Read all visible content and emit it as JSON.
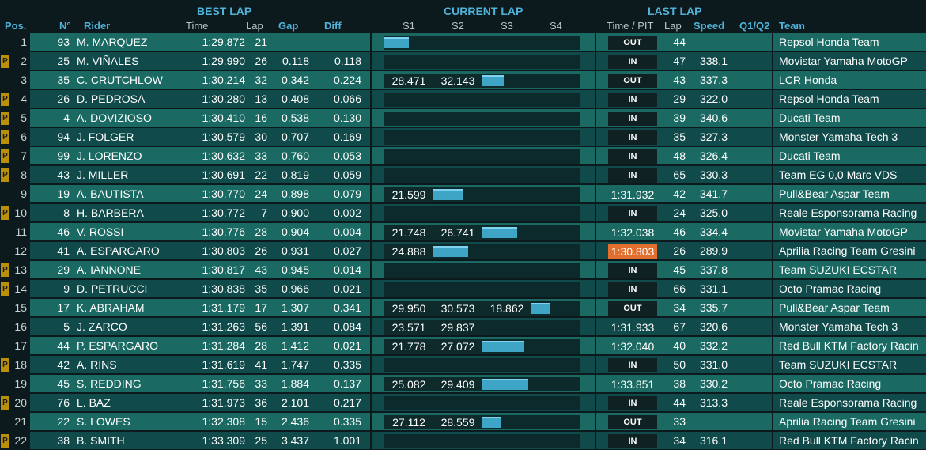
{
  "headers": {
    "best_lap": "BEST LAP",
    "current_lap": "CURRENT LAP",
    "last_lap": "LAST LAP",
    "pos": "Pos.",
    "num": "N°",
    "rider": "Rider",
    "time": "Time",
    "lap": "Lap",
    "gap": "Gap",
    "diff": "Diff",
    "s1": "S1",
    "s2": "S2",
    "s3": "S3",
    "s4": "S4",
    "time_pit": "Time / PIT",
    "last_lap_col": "Lap",
    "speed": "Speed",
    "q1q2": "Q1/Q2",
    "team": "Team"
  },
  "pit_flag": "P",
  "colors": {
    "sector_bar": "#3fa5c7",
    "fastest_lap": "#e36f2e",
    "pit_flag": "#b8900a",
    "group_header": "#4fb3d9"
  },
  "rows": [
    {
      "pos": "1",
      "pflag": false,
      "num": "93",
      "rider": "M. MARQUEZ",
      "best_time": "1:29.872",
      "best_lap": "21",
      "gap": "",
      "diff": "",
      "sectors": [
        "",
        "",
        "",
        ""
      ],
      "current_sector": 0,
      "sector_progress": 0.5,
      "last": "OUT",
      "last_type": "pit",
      "last_lap": "44",
      "speed": "",
      "team": "Repsol Honda Team"
    },
    {
      "pos": "2",
      "pflag": true,
      "num": "25",
      "rider": "M. VIÑALES",
      "best_time": "1:29.990",
      "best_lap": "26",
      "gap": "0.118",
      "diff": "0.118",
      "sectors": [
        "",
        "",
        "",
        ""
      ],
      "current_sector": -1,
      "sector_progress": 0,
      "last": "IN",
      "last_type": "pit",
      "last_lap": "47",
      "speed": "338.1",
      "team": "Movistar Yamaha MotoGP"
    },
    {
      "pos": "3",
      "pflag": false,
      "num": "35",
      "rider": "C. CRUTCHLOW",
      "best_time": "1:30.214",
      "best_lap": "32",
      "gap": "0.342",
      "diff": "0.224",
      "sectors": [
        "28.471",
        "32.143",
        "",
        ""
      ],
      "current_sector": 2,
      "sector_progress": 0.43,
      "last": "OUT",
      "last_type": "pit",
      "last_lap": "43",
      "speed": "337.3",
      "team": "LCR Honda"
    },
    {
      "pos": "4",
      "pflag": true,
      "num": "26",
      "rider": "D. PEDROSA",
      "best_time": "1:30.280",
      "best_lap": "13",
      "gap": "0.408",
      "diff": "0.066",
      "sectors": [
        "",
        "",
        "",
        ""
      ],
      "current_sector": -1,
      "sector_progress": 0,
      "last": "IN",
      "last_type": "pit",
      "last_lap": "29",
      "speed": "322.0",
      "team": "Repsol Honda Team"
    },
    {
      "pos": "5",
      "pflag": true,
      "num": "4",
      "rider": "A. DOVIZIOSO",
      "best_time": "1:30.410",
      "best_lap": "16",
      "gap": "0.538",
      "diff": "0.130",
      "sectors": [
        "",
        "",
        "",
        ""
      ],
      "current_sector": -1,
      "sector_progress": 0,
      "last": "IN",
      "last_type": "pit",
      "last_lap": "39",
      "speed": "340.6",
      "team": "Ducati Team"
    },
    {
      "pos": "6",
      "pflag": true,
      "num": "94",
      "rider": "J. FOLGER",
      "best_time": "1:30.579",
      "best_lap": "30",
      "gap": "0.707",
      "diff": "0.169",
      "sectors": [
        "",
        "",
        "",
        ""
      ],
      "current_sector": -1,
      "sector_progress": 0,
      "last": "IN",
      "last_type": "pit",
      "last_lap": "35",
      "speed": "327.3",
      "team": "Monster Yamaha Tech 3"
    },
    {
      "pos": "7",
      "pflag": true,
      "num": "99",
      "rider": "J. LORENZO",
      "best_time": "1:30.632",
      "best_lap": "33",
      "gap": "0.760",
      "diff": "0.053",
      "sectors": [
        "",
        "",
        "",
        ""
      ],
      "current_sector": -1,
      "sector_progress": 0,
      "last": "IN",
      "last_type": "pit",
      "last_lap": "48",
      "speed": "326.4",
      "team": "Ducati Team"
    },
    {
      "pos": "8",
      "pflag": true,
      "num": "43",
      "rider": "J. MILLER",
      "best_time": "1:30.691",
      "best_lap": "22",
      "gap": "0.819",
      "diff": "0.059",
      "sectors": [
        "",
        "",
        "",
        ""
      ],
      "current_sector": -1,
      "sector_progress": 0,
      "last": "IN",
      "last_type": "pit",
      "last_lap": "65",
      "speed": "330.3",
      "team": "Team EG 0,0 Marc VDS"
    },
    {
      "pos": "9",
      "pflag": false,
      "num": "19",
      "rider": "A. BAUTISTA",
      "best_time": "1:30.770",
      "best_lap": "24",
      "gap": "0.898",
      "diff": "0.079",
      "sectors": [
        "21.599",
        "",
        "",
        ""
      ],
      "current_sector": 1,
      "sector_progress": 0.6,
      "last": "1:31.932",
      "last_type": "time",
      "last_lap": "42",
      "speed": "341.7",
      "team": "Pull&Bear Aspar Team"
    },
    {
      "pos": "10",
      "pflag": true,
      "num": "8",
      "rider": "H. BARBERA",
      "best_time": "1:30.772",
      "best_lap": "7",
      "gap": "0.900",
      "diff": "0.002",
      "sectors": [
        "",
        "",
        "",
        ""
      ],
      "current_sector": -1,
      "sector_progress": 0,
      "last": "IN",
      "last_type": "pit",
      "last_lap": "24",
      "speed": "325.0",
      "team": "Reale Esponsorama Racing"
    },
    {
      "pos": "11",
      "pflag": false,
      "num": "46",
      "rider": "V. ROSSI",
      "best_time": "1:30.776",
      "best_lap": "28",
      "gap": "0.904",
      "diff": "0.004",
      "sectors": [
        "21.748",
        "26.741",
        "",
        ""
      ],
      "current_sector": 2,
      "sector_progress": 0.71,
      "last": "1:32.038",
      "last_type": "time",
      "last_lap": "46",
      "speed": "334.4",
      "team": "Movistar Yamaha MotoGP"
    },
    {
      "pos": "12",
      "pflag": false,
      "num": "41",
      "rider": "A. ESPARGARO",
      "best_time": "1:30.803",
      "best_lap": "26",
      "gap": "0.931",
      "diff": "0.027",
      "sectors": [
        "24.888",
        "",
        "",
        ""
      ],
      "current_sector": 1,
      "sector_progress": 0.71,
      "last": "1:30.803",
      "last_type": "fast",
      "last_lap": "26",
      "speed": "289.9",
      "team": "Aprilia Racing Team Gresini"
    },
    {
      "pos": "13",
      "pflag": true,
      "num": "29",
      "rider": "A. IANNONE",
      "best_time": "1:30.817",
      "best_lap": "43",
      "gap": "0.945",
      "diff": "0.014",
      "sectors": [
        "",
        "",
        "",
        ""
      ],
      "current_sector": -1,
      "sector_progress": 0,
      "last": "IN",
      "last_type": "pit",
      "last_lap": "45",
      "speed": "337.8",
      "team": "Team SUZUKI ECSTAR"
    },
    {
      "pos": "14",
      "pflag": true,
      "num": "9",
      "rider": "D. PETRUCCI",
      "best_time": "1:30.838",
      "best_lap": "35",
      "gap": "0.966",
      "diff": "0.021",
      "sectors": [
        "",
        "",
        "",
        ""
      ],
      "current_sector": -1,
      "sector_progress": 0,
      "last": "IN",
      "last_type": "pit",
      "last_lap": "66",
      "speed": "331.1",
      "team": "Octo Pramac Racing"
    },
    {
      "pos": "15",
      "pflag": false,
      "num": "17",
      "rider": "K. ABRAHAM",
      "best_time": "1:31.179",
      "best_lap": "17",
      "gap": "1.307",
      "diff": "0.341",
      "sectors": [
        "29.950",
        "30.573",
        "18.862",
        ""
      ],
      "current_sector": 3,
      "sector_progress": 0.39,
      "last": "OUT",
      "last_type": "pit",
      "last_lap": "34",
      "speed": "335.7",
      "team": "Pull&Bear Aspar Team"
    },
    {
      "pos": "16",
      "pflag": false,
      "num": "5",
      "rider": "J. ZARCO",
      "best_time": "1:31.263",
      "best_lap": "56",
      "gap": "1.391",
      "diff": "0.084",
      "sectors": [
        "23.571",
        "29.837",
        "",
        ""
      ],
      "current_sector": -1,
      "sector_progress": 0,
      "last": "1:31.933",
      "last_type": "time",
      "last_lap": "67",
      "speed": "320.6",
      "team": "Monster Yamaha Tech 3"
    },
    {
      "pos": "17",
      "pflag": false,
      "num": "44",
      "rider": "P. ESPARGARO",
      "best_time": "1:31.284",
      "best_lap": "28",
      "gap": "1.412",
      "diff": "0.021",
      "sectors": [
        "21.778",
        "27.072",
        "",
        ""
      ],
      "current_sector": 2,
      "sector_progress": 0.85,
      "last": "1:32.040",
      "last_type": "time",
      "last_lap": "40",
      "speed": "332.2",
      "team": "Red Bull KTM Factory Racin"
    },
    {
      "pos": "18",
      "pflag": true,
      "num": "42",
      "rider": "A. RINS",
      "best_time": "1:31.619",
      "best_lap": "41",
      "gap": "1.747",
      "diff": "0.335",
      "sectors": [
        "",
        "",
        "",
        ""
      ],
      "current_sector": -1,
      "sector_progress": 0,
      "last": "IN",
      "last_type": "pit",
      "last_lap": "50",
      "speed": "331.0",
      "team": "Team SUZUKI ECSTAR"
    },
    {
      "pos": "19",
      "pflag": false,
      "num": "45",
      "rider": "S. REDDING",
      "best_time": "1:31.756",
      "best_lap": "33",
      "gap": "1.884",
      "diff": "0.137",
      "sectors": [
        "25.082",
        "29.409",
        "",
        ""
      ],
      "current_sector": 2,
      "sector_progress": 0.93,
      "last": "1:33.851",
      "last_type": "time",
      "last_lap": "38",
      "speed": "330.2",
      "team": "Octo Pramac Racing"
    },
    {
      "pos": "20",
      "pflag": true,
      "num": "76",
      "rider": "L. BAZ",
      "best_time": "1:31.973",
      "best_lap": "36",
      "gap": "2.101",
      "diff": "0.217",
      "sectors": [
        "",
        "",
        "",
        ""
      ],
      "current_sector": -1,
      "sector_progress": 0,
      "last": "IN",
      "last_type": "pit",
      "last_lap": "44",
      "speed": "313.3",
      "team": "Reale Esponsorama Racing"
    },
    {
      "pos": "21",
      "pflag": false,
      "num": "22",
      "rider": "S. LOWES",
      "best_time": "1:32.308",
      "best_lap": "15",
      "gap": "2.436",
      "diff": "0.335",
      "sectors": [
        "27.112",
        "28.559",
        "",
        ""
      ],
      "current_sector": 2,
      "sector_progress": 0.37,
      "last": "OUT",
      "last_type": "pit",
      "last_lap": "33",
      "speed": "",
      "team": "Aprilia Racing Team Gresini"
    },
    {
      "pos": "22",
      "pflag": true,
      "num": "38",
      "rider": "B. SMITH",
      "best_time": "1:33.309",
      "best_lap": "25",
      "gap": "3.437",
      "diff": "1.001",
      "sectors": [
        "",
        "",
        "",
        ""
      ],
      "current_sector": -1,
      "sector_progress": 0,
      "last": "IN",
      "last_type": "pit",
      "last_lap": "34",
      "speed": "316.1",
      "team": "Red Bull KTM Factory Racin"
    }
  ]
}
